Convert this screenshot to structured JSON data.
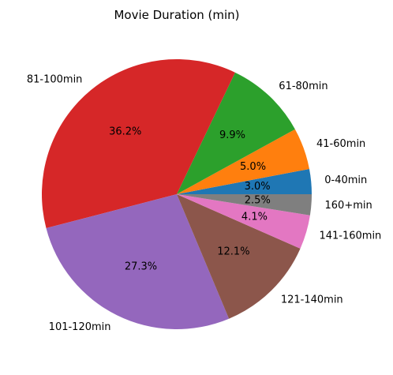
{
  "chart_data": {
    "type": "pie",
    "title": "Movie Duration (min)",
    "categories": [
      "0-40min",
      "41-60min",
      "61-80min",
      "81-100min",
      "101-120min",
      "121-140min",
      "141-160min",
      "160+min"
    ],
    "values": [
      3.0,
      5.0,
      9.9,
      36.2,
      27.3,
      12.1,
      4.1,
      2.5
    ],
    "percent_labels": [
      "3.0%",
      "5.0%",
      "9.9%",
      "36.2%",
      "27.3%",
      "12.1%",
      "4.1%",
      "2.5%"
    ],
    "colors": [
      "#1f77b4",
      "#ff7f0e",
      "#2ca02c",
      "#d62728",
      "#9467bd",
      "#8c564b",
      "#e377c2",
      "#7f7f7f"
    ],
    "start_angle_deg": 0,
    "direction": "counterclockwise",
    "legend": "none"
  }
}
